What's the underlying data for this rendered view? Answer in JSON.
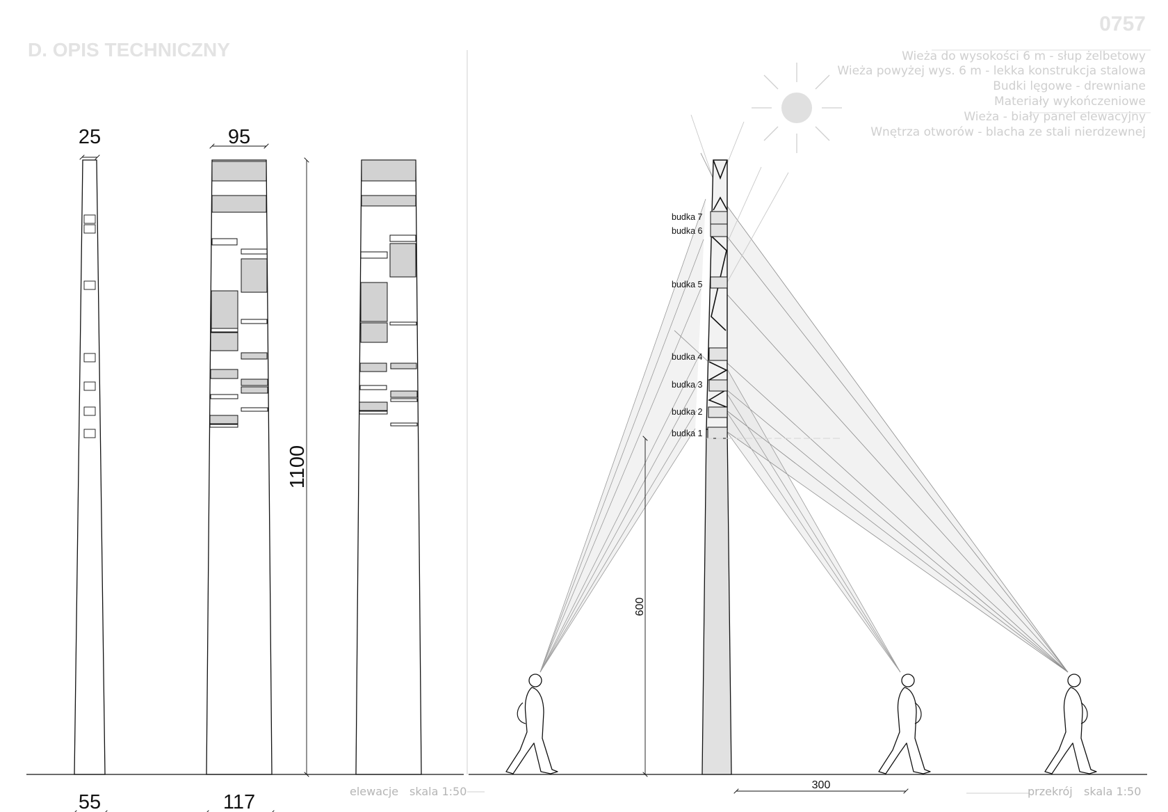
{
  "header": {
    "title": "D. OPIS TECHNICZNY",
    "sheet_number": "0757"
  },
  "specs": [
    "Wieża do wysokości 6 m - słup żelbetowy",
    "Wieża powyżej wys. 6 m - lekka konstrukcja stalowa",
    "Budki lęgowe - drewniane",
    "Materiały wykończeniowe",
    "Wieża - biały panel elewacyjny",
    "Wnętrza otworów - blacha ze stali nierdzewnej"
  ],
  "dimensions": {
    "side_top": "25",
    "side_bottom": "55",
    "front_top": "95",
    "front_bottom": "117",
    "total_height": "1100",
    "concrete_height": "600",
    "observer_distance": "300"
  },
  "boxes": [
    "budka 7",
    "budka 6",
    "budka 5",
    "budka 4",
    "budka 3",
    "budka 2",
    "budka 1"
  ],
  "captions": {
    "elevations": "elewacje",
    "elevations_scale": "skala 1:50",
    "section": "przekrój",
    "section_scale": "skala 1:50"
  },
  "colors": {
    "panel": "#d2d2d2",
    "sun": "#e0e0e0",
    "ghost_text": "#e3e3e3",
    "caption_text": "#b5b5b5"
  }
}
